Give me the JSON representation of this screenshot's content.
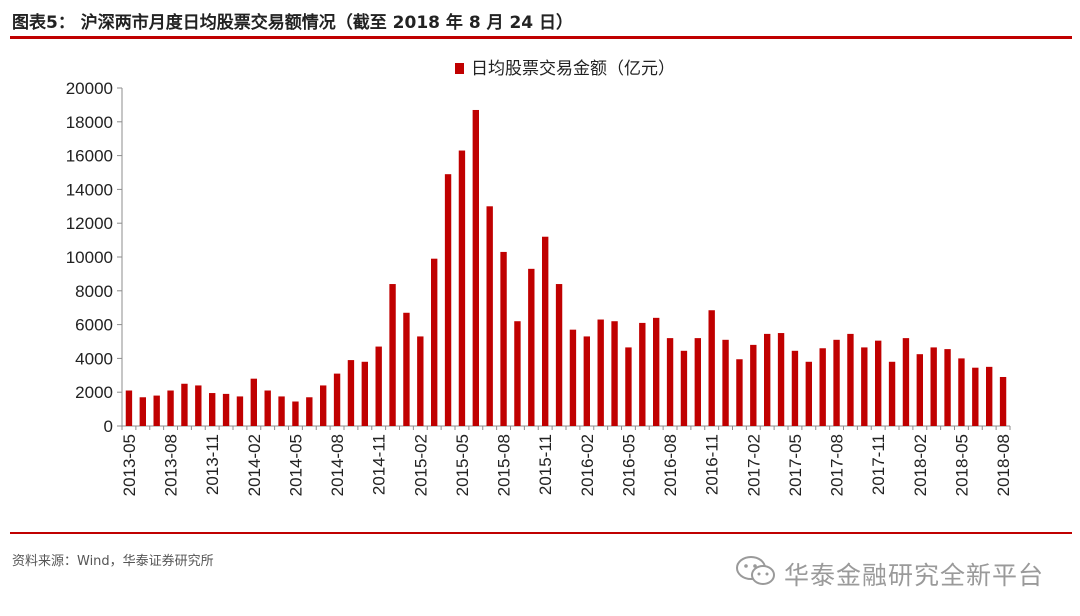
{
  "header": {
    "title": "图表5：  沪深两市月度日均股票交易额情况（截至 2018 年 8 月 24 日）"
  },
  "source": "资料来源：Wind，华泰证券研究所",
  "watermark": {
    "text": "华泰金融研究全新平台",
    "icon": "wechat-icon"
  },
  "colors": {
    "bar": "#c00000",
    "accent_rule": "#c00000",
    "axis": "#8c8c8c"
  },
  "chart_data": {
    "type": "bar",
    "title": "",
    "xlabel": "",
    "ylabel": "",
    "ylim": [
      0,
      20000
    ],
    "yticks": [
      0,
      2000,
      4000,
      6000,
      8000,
      10000,
      12000,
      14000,
      16000,
      18000,
      20000
    ],
    "grid": false,
    "legend_position": "top-center",
    "categories": [
      "2013-05",
      "2013-06",
      "2013-07",
      "2013-08",
      "2013-09",
      "2013-10",
      "2013-11",
      "2013-12",
      "2014-01",
      "2014-02",
      "2014-03",
      "2014-04",
      "2014-05",
      "2014-06",
      "2014-07",
      "2014-08",
      "2014-09",
      "2014-10",
      "2014-11",
      "2014-12",
      "2015-01",
      "2015-02",
      "2015-03",
      "2015-04",
      "2015-05",
      "2015-06",
      "2015-07",
      "2015-08",
      "2015-09",
      "2015-10",
      "2015-11",
      "2015-12",
      "2016-01",
      "2016-02",
      "2016-03",
      "2016-04",
      "2016-05",
      "2016-06",
      "2016-07",
      "2016-08",
      "2016-09",
      "2016-10",
      "2016-11",
      "2016-12",
      "2017-01",
      "2017-02",
      "2017-03",
      "2017-04",
      "2017-05",
      "2017-06",
      "2017-07",
      "2017-08",
      "2017-09",
      "2017-10",
      "2017-11",
      "2017-12",
      "2018-01",
      "2018-02",
      "2018-03",
      "2018-04",
      "2018-05",
      "2018-06",
      "2018-07",
      "2018-08"
    ],
    "xtick_labels": [
      "2013-05",
      "2013-08",
      "2013-11",
      "2014-02",
      "2014-05",
      "2014-08",
      "2014-11",
      "2015-02",
      "2015-05",
      "2015-08",
      "2015-11",
      "2016-02",
      "2016-05",
      "2016-08",
      "2016-11",
      "2017-02",
      "2017-05",
      "2017-08",
      "2017-11",
      "2018-02",
      "2018-05",
      "2018-08"
    ],
    "series": [
      {
        "name": "日均股票交易金额（亿元）",
        "values": [
          2100,
          1700,
          1800,
          2100,
          2500,
          2400,
          1950,
          1900,
          1750,
          2800,
          2100,
          1750,
          1450,
          1700,
          2400,
          3100,
          3900,
          3800,
          4700,
          8400,
          6700,
          5300,
          9900,
          14900,
          16300,
          18700,
          13000,
          10300,
          6200,
          9300,
          11200,
          8400,
          5700,
          5300,
          6300,
          6200,
          4650,
          6100,
          6400,
          5200,
          4450,
          5200,
          6850,
          5100,
          3950,
          4800,
          5450,
          5500,
          4450,
          3800,
          4600,
          5100,
          5450,
          4650,
          5050,
          3800,
          5200,
          4250,
          4650,
          4550,
          4000,
          3450,
          3500,
          2900
        ]
      }
    ]
  }
}
